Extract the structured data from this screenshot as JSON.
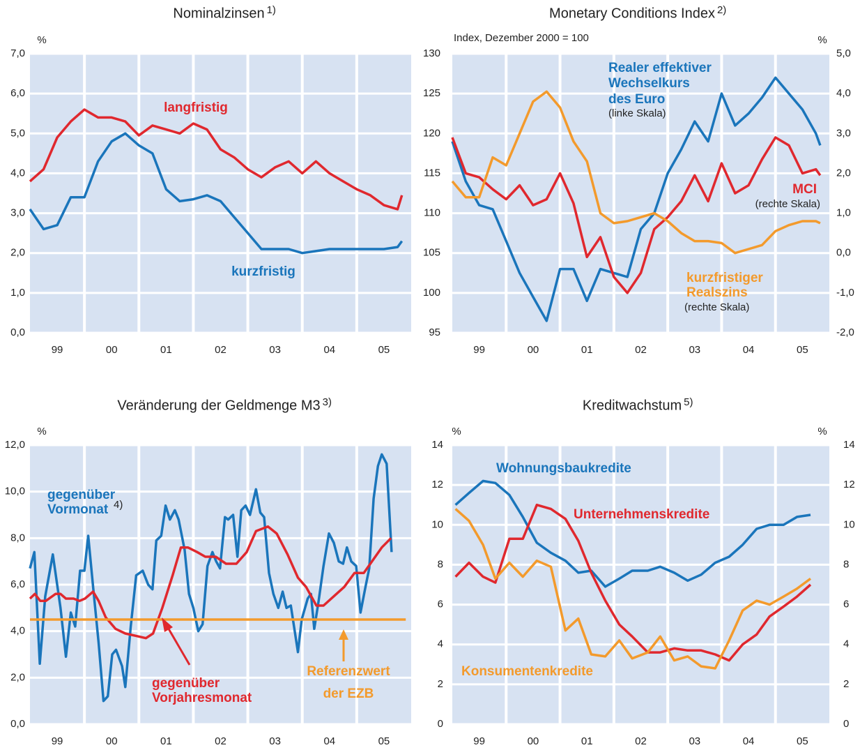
{
  "chart_data": [
    {
      "type": "line",
      "title": "Nominalzinsen",
      "title_note": "1)",
      "y_unit": "%",
      "x": [
        1999,
        1999.25,
        1999.5,
        1999.75,
        2000,
        2000.25,
        2000.5,
        2000.75,
        2001,
        2001.25,
        2001.5,
        2001.75,
        2002,
        2002.25,
        2002.5,
        2002.75,
        2003,
        2003.25,
        2003.5,
        2003.75,
        2004,
        2004.25,
        2004.5,
        2004.75,
        2005,
        2005.25,
        2005.5,
        2005.75,
        2005.83
      ],
      "series": [
        {
          "color": "#e0282e",
          "values": [
            3.8,
            4.1,
            4.9,
            5.3,
            5.6,
            5.4,
            5.4,
            5.3,
            4.95,
            5.2,
            5.1,
            5.0,
            5.25,
            5.1,
            4.6,
            4.4,
            4.1,
            3.9,
            4.15,
            4.3,
            4.0,
            4.3,
            4.0,
            3.8,
            3.6,
            3.45,
            3.2,
            3.1,
            3.45
          ]
        },
        {
          "color": "#1a75bb",
          "values": [
            3.1,
            2.6,
            2.7,
            3.4,
            3.4,
            4.3,
            4.8,
            5.0,
            4.7,
            4.5,
            3.6,
            3.3,
            3.35,
            3.45,
            3.3,
            2.9,
            2.5,
            2.1,
            2.1,
            2.1,
            2.0,
            2.05,
            2.1,
            2.1,
            2.1,
            2.1,
            2.1,
            2.15,
            2.3
          ]
        }
      ],
      "annotations": [
        "langfristig",
        "kurzfristig"
      ],
      "xlim": [
        1999,
        2006
      ],
      "xticks": [
        {
          "value": 1999.5,
          "label": "99"
        },
        {
          "value": 2000.5,
          "label": "00"
        },
        {
          "value": 2001.5,
          "label": "01"
        },
        {
          "value": 2002.5,
          "label": "02"
        },
        {
          "value": 2003.5,
          "label": "03"
        },
        {
          "value": 2004.5,
          "label": "04"
        },
        {
          "value": 2005.5,
          "label": "05"
        }
      ],
      "ylim": [
        0,
        7
      ],
      "yticks": [
        {
          "value": 0,
          "label": "0,0"
        },
        {
          "value": 1,
          "label": "1,0"
        },
        {
          "value": 2,
          "label": "2,0"
        },
        {
          "value": 3,
          "label": "3,0"
        },
        {
          "value": 4,
          "label": "4,0"
        },
        {
          "value": 5,
          "label": "5,0"
        },
        {
          "value": 6,
          "label": "6,0"
        },
        {
          "value": 7,
          "label": "7,0"
        }
      ],
      "grid": true
    },
    {
      "type": "line",
      "title": "Monetary Conditions Index",
      "title_note": "2)",
      "subtitle": "Index, Dezember 2000 = 100",
      "y2_unit": "%",
      "x": [
        1999,
        1999.25,
        1999.5,
        1999.75,
        2000,
        2000.25,
        2000.5,
        2000.75,
        2001,
        2001.25,
        2001.5,
        2001.75,
        2002,
        2002.25,
        2002.5,
        2002.75,
        2003,
        2003.25,
        2003.5,
        2003.75,
        2004,
        2004.25,
        2004.5,
        2004.75,
        2005,
        2005.25,
        2005.5,
        2005.75,
        2005.83
      ],
      "series": [
        {
          "color": "#1a75bb",
          "values": [
            119,
            114,
            111,
            110.5,
            106.5,
            102.5,
            99.5,
            96.5,
            103,
            103,
            99,
            103,
            102.5,
            102,
            108,
            110,
            115,
            118,
            121.5,
            119,
            125,
            121,
            122.5,
            124.5,
            127,
            125,
            123,
            120,
            118.5
          ]
        },
        {
          "color": "#e0282e",
          "axis": "y2",
          "values": [
            2.9,
            2.0,
            1.9,
            1.6,
            1.35,
            1.7,
            1.2,
            1.35,
            2.0,
            1.25,
            -0.1,
            0.4,
            -0.6,
            -1.0,
            -0.5,
            0.6,
            0.9,
            1.3,
            1.95,
            1.3,
            2.25,
            1.5,
            1.7,
            2.35,
            2.9,
            2.7,
            2.0,
            2.1,
            1.95
          ]
        },
        {
          "color": "#f39a2c",
          "axis": "y2",
          "values": [
            1.8,
            1.4,
            1.4,
            2.4,
            2.2,
            3.0,
            3.8,
            4.05,
            3.65,
            2.8,
            2.3,
            1.0,
            0.75,
            0.8,
            0.9,
            1.0,
            0.8,
            0.5,
            0.3,
            0.3,
            0.25,
            0.0,
            0.1,
            0.2,
            0.55,
            0.7,
            0.8,
            0.8,
            0.75
          ]
        }
      ],
      "annotations": [
        "Realer effektiver",
        "Wechselkurs",
        "des Euro",
        "(linke Skala)",
        "MCI",
        "(rechte Skala)",
        "kurzfristiger",
        "Realszins",
        "(rechte Skala)"
      ],
      "xlim": [
        1999,
        2006
      ],
      "xticks": [
        {
          "value": 1999.5,
          "label": "99"
        },
        {
          "value": 2000.5,
          "label": "00"
        },
        {
          "value": 2001.5,
          "label": "01"
        },
        {
          "value": 2002.5,
          "label": "02"
        },
        {
          "value": 2003.5,
          "label": "03"
        },
        {
          "value": 2004.5,
          "label": "04"
        },
        {
          "value": 2005.5,
          "label": "05"
        }
      ],
      "ylim": [
        95,
        130
      ],
      "yticks": [
        95,
        100,
        105,
        110,
        115,
        120,
        125,
        130
      ],
      "y2lim": [
        -2,
        5
      ],
      "y2ticks": [
        {
          "value": -2,
          "label": "-2,0"
        },
        {
          "value": -1,
          "label": "-1,0"
        },
        {
          "value": 0,
          "label": "0,0"
        },
        {
          "value": 1,
          "label": "1,0"
        },
        {
          "value": 2,
          "label": "2,0"
        },
        {
          "value": 3,
          "label": "3,0"
        },
        {
          "value": 4,
          "label": "4,0"
        },
        {
          "value": 5,
          "label": "5,0"
        }
      ],
      "grid": true
    },
    {
      "type": "line",
      "title": "Veränderung der Geldmenge M3",
      "title_note": "3)",
      "y_unit": "%",
      "series": [
        {
          "color": "#1a75bb",
          "x": [
            1999.0,
            1999.08,
            1999.18,
            1999.28,
            1999.42,
            1999.56,
            1999.66,
            1999.75,
            1999.83,
            1999.92,
            2000.0,
            2000.07,
            2000.16,
            2000.26,
            2000.35,
            2000.43,
            2000.51,
            2000.58,
            2000.69,
            2000.75,
            2000.85,
            2000.95,
            2001.07,
            2001.17,
            2001.25,
            2001.32,
            2001.41,
            2001.49,
            2001.57,
            2001.66,
            2001.73,
            2001.84,
            2001.92,
            2002.0,
            2002.09,
            2002.17,
            2002.26,
            2002.35,
            2002.42,
            2002.49,
            2002.58,
            2002.64,
            2002.73,
            2002.81,
            2002.88,
            2002.96,
            2003.04,
            2003.15,
            2003.23,
            2003.3,
            2003.39,
            2003.47,
            2003.56,
            2003.64,
            2003.71,
            2003.79,
            2003.92,
            2003.99,
            2004.1,
            2004.16,
            2004.22,
            2004.3,
            2004.39,
            2004.49,
            2004.58,
            2004.67,
            2004.75,
            2004.82,
            2004.9,
            2004.99,
            2005.07,
            2005.16,
            2005.23,
            2005.31,
            2005.39,
            2005.46,
            2005.55,
            2005.64
          ],
          "values": [
            6.7,
            7.4,
            2.6,
            5.5,
            7.3,
            5.0,
            2.9,
            4.8,
            4.2,
            6.6,
            6.6,
            8.1,
            5.9,
            3.5,
            1.0,
            1.2,
            3.0,
            3.2,
            2.5,
            1.6,
            4.2,
            6.4,
            6.6,
            6.0,
            5.8,
            7.9,
            8.1,
            9.4,
            8.8,
            9.2,
            8.8,
            7.5,
            5.6,
            5.0,
            4.0,
            4.3,
            6.8,
            7.4,
            7.0,
            6.7,
            8.9,
            8.8,
            9.0,
            7.2,
            9.2,
            9.4,
            9.0,
            10.1,
            9.1,
            8.9,
            6.5,
            5.6,
            5.0,
            5.7,
            5.0,
            5.1,
            3.1,
            4.5,
            5.4,
            5.6,
            4.1,
            5.3,
            6.8,
            8.2,
            7.8,
            7.0,
            6.9,
            7.6,
            7.0,
            6.8,
            4.8,
            5.9,
            6.7,
            9.7,
            11.1,
            11.6,
            11.2,
            7.4
          ]
        },
        {
          "color": "#e0282e",
          "x": [
            1999.0,
            1999.09,
            1999.19,
            1999.29,
            1999.47,
            1999.56,
            1999.66,
            1999.8,
            1999.91,
            2000.01,
            2000.16,
            2000.26,
            2000.39,
            2000.57,
            2000.75,
            2000.94,
            2001.13,
            2001.26,
            2001.43,
            2001.62,
            2001.77,
            2001.9,
            2002.07,
            2002.22,
            2002.41,
            2002.6,
            2002.79,
            2002.98,
            2003.15,
            2003.37,
            2003.53,
            2003.73,
            2003.92,
            2004.07,
            2004.26,
            2004.39,
            2004.58,
            2004.77,
            2004.96,
            2005.13,
            2005.28,
            2005.46,
            2005.63
          ],
          "values": [
            5.4,
            5.6,
            5.3,
            5.3,
            5.6,
            5.6,
            5.4,
            5.4,
            5.3,
            5.4,
            5.7,
            5.3,
            4.6,
            4.1,
            3.9,
            3.8,
            3.7,
            3.9,
            5.0,
            6.4,
            7.6,
            7.6,
            7.4,
            7.2,
            7.2,
            6.9,
            6.9,
            7.4,
            8.3,
            8.5,
            8.2,
            7.3,
            6.3,
            5.9,
            5.1,
            5.1,
            5.5,
            5.9,
            6.5,
            6.5,
            7.0,
            7.6,
            8.0
          ]
        },
        {
          "color": "#f39a2c",
          "x": [
            1999,
            2005.9
          ],
          "values": [
            4.5,
            4.5
          ]
        }
      ],
      "annotations": [
        "gegenüber",
        "Vormonat",
        "4)",
        "gegenüber",
        "Vorjahresmonat",
        "Referenzwert",
        "der EZB"
      ],
      "xlim": [
        1999,
        2006
      ],
      "xticks": [
        {
          "value": 1999.5,
          "label": "99"
        },
        {
          "value": 2000.5,
          "label": "00"
        },
        {
          "value": 2001.5,
          "label": "01"
        },
        {
          "value": 2002.5,
          "label": "02"
        },
        {
          "value": 2003.5,
          "label": "03"
        },
        {
          "value": 2004.5,
          "label": "04"
        },
        {
          "value": 2005.5,
          "label": "05"
        }
      ],
      "ylim": [
        0,
        12
      ],
      "yticks": [
        {
          "value": 0,
          "label": "0,0"
        },
        {
          "value": 2,
          "label": "2,0"
        },
        {
          "value": 4,
          "label": "4,0"
        },
        {
          "value": 6,
          "label": "6,0"
        },
        {
          "value": 8,
          "label": "8,0"
        },
        {
          "value": 10,
          "label": "10,0"
        },
        {
          "value": 12,
          "label": "12,0"
        }
      ],
      "grid": true
    },
    {
      "type": "line",
      "title": "Kreditwachstum",
      "title_note": "5)",
      "y_unit": "%",
      "y2_unit": "%",
      "x": [
        1999.06,
        1999.31,
        1999.57,
        1999.8,
        2000.06,
        2000.31,
        2000.57,
        2000.83,
        2001.1,
        2001.34,
        2001.58,
        2001.84,
        2002.1,
        2002.34,
        2002.63,
        2002.86,
        2003.12,
        2003.37,
        2003.62,
        2003.88,
        2004.14,
        2004.39,
        2004.65,
        2004.89,
        2005.15,
        2005.4,
        2005.65
      ],
      "series": [
        {
          "color": "#1a75bb",
          "values": [
            11.0,
            11.6,
            12.2,
            12.1,
            11.5,
            10.4,
            9.1,
            8.6,
            8.2,
            7.6,
            7.7,
            6.9,
            7.3,
            7.7,
            7.7,
            7.9,
            7.6,
            7.2,
            7.5,
            8.1,
            8.4,
            9.0,
            9.8,
            10.0,
            10.0,
            10.4,
            10.5
          ]
        },
        {
          "color": "#e0282e",
          "values": [
            7.4,
            8.1,
            7.4,
            7.1,
            9.3,
            9.3,
            11.0,
            10.8,
            10.3,
            9.2,
            7.6,
            6.2,
            5.0,
            4.4,
            3.6,
            3.6,
            3.8,
            3.7,
            3.7,
            3.5,
            3.2,
            4.0,
            4.5,
            5.4,
            5.9,
            6.4,
            7.0
          ]
        },
        {
          "color": "#f39a2c",
          "values": [
            10.8,
            10.2,
            9.0,
            7.3,
            8.1,
            7.4,
            8.2,
            7.9,
            4.7,
            5.3,
            3.5,
            3.4,
            4.2,
            3.3,
            3.6,
            4.4,
            3.2,
            3.4,
            2.9,
            2.8,
            4.2,
            5.7,
            6.2,
            6.0,
            6.4,
            6.8,
            7.3
          ]
        }
      ],
      "annotations": [
        "Wohnungsbaukredite",
        "Unternehmenskredite",
        "Konsumentenkredite"
      ],
      "xlim": [
        1999,
        2006
      ],
      "xticks": [
        {
          "value": 1999.5,
          "label": "99"
        },
        {
          "value": 2000.5,
          "label": "00"
        },
        {
          "value": 2001.5,
          "label": "01"
        },
        {
          "value": 2002.5,
          "label": "02"
        },
        {
          "value": 2003.5,
          "label": "03"
        },
        {
          "value": 2004.5,
          "label": "04"
        },
        {
          "value": 2005.5,
          "label": "05"
        }
      ],
      "ylim": [
        0,
        14
      ],
      "yticks": [
        0,
        2,
        4,
        6,
        8,
        10,
        12,
        14
      ],
      "y2lim": [
        0,
        14
      ],
      "y2ticks": [
        0,
        2,
        4,
        6,
        8,
        10,
        12,
        14
      ],
      "grid": true
    }
  ]
}
